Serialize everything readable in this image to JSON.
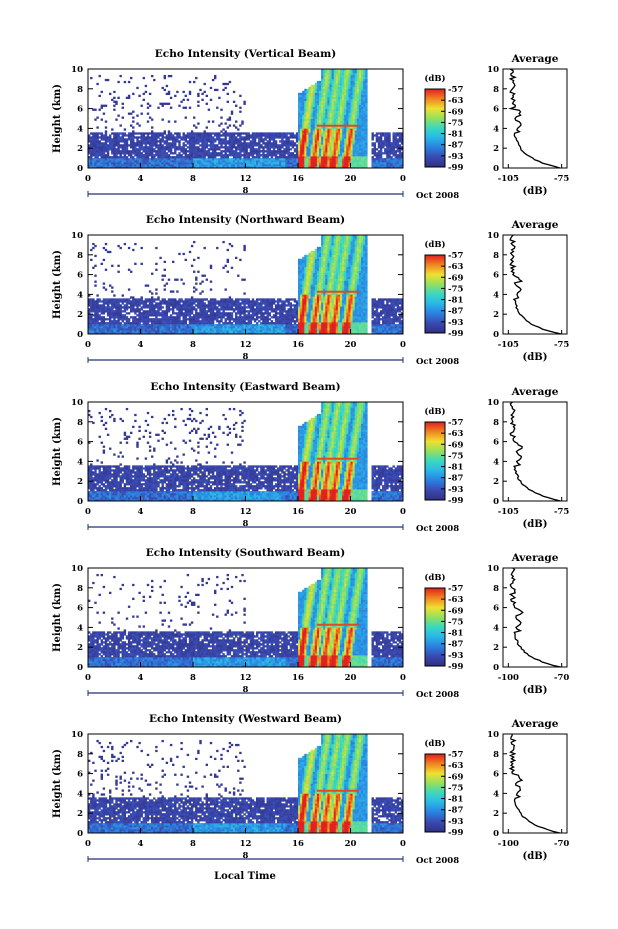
{
  "figure": {
    "bottom_xlabel": "Local Time"
  },
  "chart_data": [
    {
      "type": "heatmap",
      "title": "Echo Intensity (Vertical Beam)",
      "ylabel": "Height (km)",
      "ylim": [
        0,
        10
      ],
      "yticks": [
        "0",
        "2",
        "4",
        "6",
        "8",
        "10"
      ],
      "xlim": [
        0,
        24
      ],
      "xticks": [
        "0",
        "4",
        "8",
        "12",
        "16",
        "20",
        "0"
      ],
      "day_label": "8",
      "date_label": "Oct 2008",
      "colorbar": {
        "label": "(dB)",
        "ticks": [
          "-57",
          "-63",
          "-69",
          "-75",
          "-81",
          "-87",
          "-93",
          "-99"
        ],
        "range": [
          -99,
          -57
        ]
      },
      "profile": {
        "title": "Average",
        "xlabel": "(dB)",
        "xticks": [
          "-105",
          "-75"
        ],
        "xlim": [
          -108,
          -72
        ],
        "ylim": [
          0,
          10
        ],
        "yticks": [
          "0",
          "2",
          "4",
          "6",
          "8",
          "10"
        ]
      }
    },
    {
      "type": "heatmap",
      "title": "Echo Intensity (Northward Beam)",
      "ylabel": "Height (km)",
      "ylim": [
        0,
        10
      ],
      "yticks": [
        "0",
        "2",
        "4",
        "6",
        "8",
        "10"
      ],
      "xlim": [
        0,
        24
      ],
      "xticks": [
        "0",
        "4",
        "8",
        "12",
        "16",
        "20",
        "0"
      ],
      "day_label": "8",
      "date_label": "Oct 2008",
      "colorbar": {
        "label": "(dB)",
        "ticks": [
          "-57",
          "-63",
          "-69",
          "-75",
          "-81",
          "-87",
          "-93",
          "-99"
        ],
        "range": [
          -99,
          -57
        ]
      },
      "profile": {
        "title": "Average",
        "xlabel": "(dB)",
        "xticks": [
          "-105",
          "-75"
        ],
        "xlim": [
          -108,
          -72
        ],
        "ylim": [
          0,
          10
        ],
        "yticks": [
          "0",
          "2",
          "4",
          "6",
          "8",
          "10"
        ]
      }
    },
    {
      "type": "heatmap",
      "title": "Echo Intensity (Eastward Beam)",
      "ylabel": "Height (km)",
      "ylim": [
        0,
        10
      ],
      "yticks": [
        "0",
        "2",
        "4",
        "6",
        "8",
        "10"
      ],
      "xlim": [
        0,
        24
      ],
      "xticks": [
        "0",
        "4",
        "8",
        "12",
        "16",
        "20",
        "0"
      ],
      "day_label": "8",
      "date_label": "Oct 2008",
      "colorbar": {
        "label": "(dB)",
        "ticks": [
          "-57",
          "-63",
          "-69",
          "-75",
          "-81",
          "-87",
          "-93",
          "-99"
        ],
        "range": [
          -99,
          -57
        ]
      },
      "profile": {
        "title": "Average",
        "xlabel": "(dB)",
        "xticks": [
          "-105",
          "-75"
        ],
        "xlim": [
          -108,
          -72
        ],
        "ylim": [
          0,
          10
        ],
        "yticks": [
          "0",
          "2",
          "4",
          "6",
          "8",
          "10"
        ]
      }
    },
    {
      "type": "heatmap",
      "title": "Echo Intensity (Southward Beam)",
      "ylabel": "Height (km)",
      "ylim": [
        0,
        10
      ],
      "yticks": [
        "0",
        "2",
        "4",
        "6",
        "8",
        "10"
      ],
      "xlim": [
        0,
        24
      ],
      "xticks": [
        "0",
        "4",
        "8",
        "12",
        "16",
        "20",
        "0"
      ],
      "day_label": "8",
      "date_label": "Oct 2008",
      "colorbar": {
        "label": "(dB)",
        "ticks": [
          "-57",
          "-63",
          "-69",
          "-75",
          "-81",
          "-87",
          "-93",
          "-99"
        ],
        "range": [
          -99,
          -57
        ]
      },
      "profile": {
        "title": "Average",
        "xlabel": "(dB)",
        "xticks": [
          "-100",
          "-70"
        ],
        "xlim": [
          -103,
          -67
        ],
        "ylim": [
          0,
          10
        ],
        "yticks": [
          "0",
          "2",
          "4",
          "6",
          "8",
          "10"
        ]
      }
    },
    {
      "type": "heatmap",
      "title": "Echo Intensity (Westward Beam)",
      "ylabel": "Height (km)",
      "ylim": [
        0,
        10
      ],
      "yticks": [
        "0",
        "2",
        "4",
        "6",
        "8",
        "10"
      ],
      "xlim": [
        0,
        24
      ],
      "xticks": [
        "0",
        "4",
        "8",
        "12",
        "16",
        "20",
        "0"
      ],
      "day_label": "8",
      "date_label": "Oct 2008",
      "colorbar": {
        "label": "(dB)",
        "ticks": [
          "-57",
          "-63",
          "-69",
          "-75",
          "-81",
          "-87",
          "-93",
          "-99"
        ],
        "range": [
          -99,
          -57
        ]
      },
      "profile": {
        "title": "Average",
        "xlabel": "(dB)",
        "xticks": [
          "-100",
          "-70"
        ],
        "xlim": [
          -103,
          -67
        ],
        "ylim": [
          0,
          10
        ],
        "yticks": [
          "0",
          "2",
          "4",
          "6",
          "8",
          "10"
        ]
      }
    }
  ]
}
